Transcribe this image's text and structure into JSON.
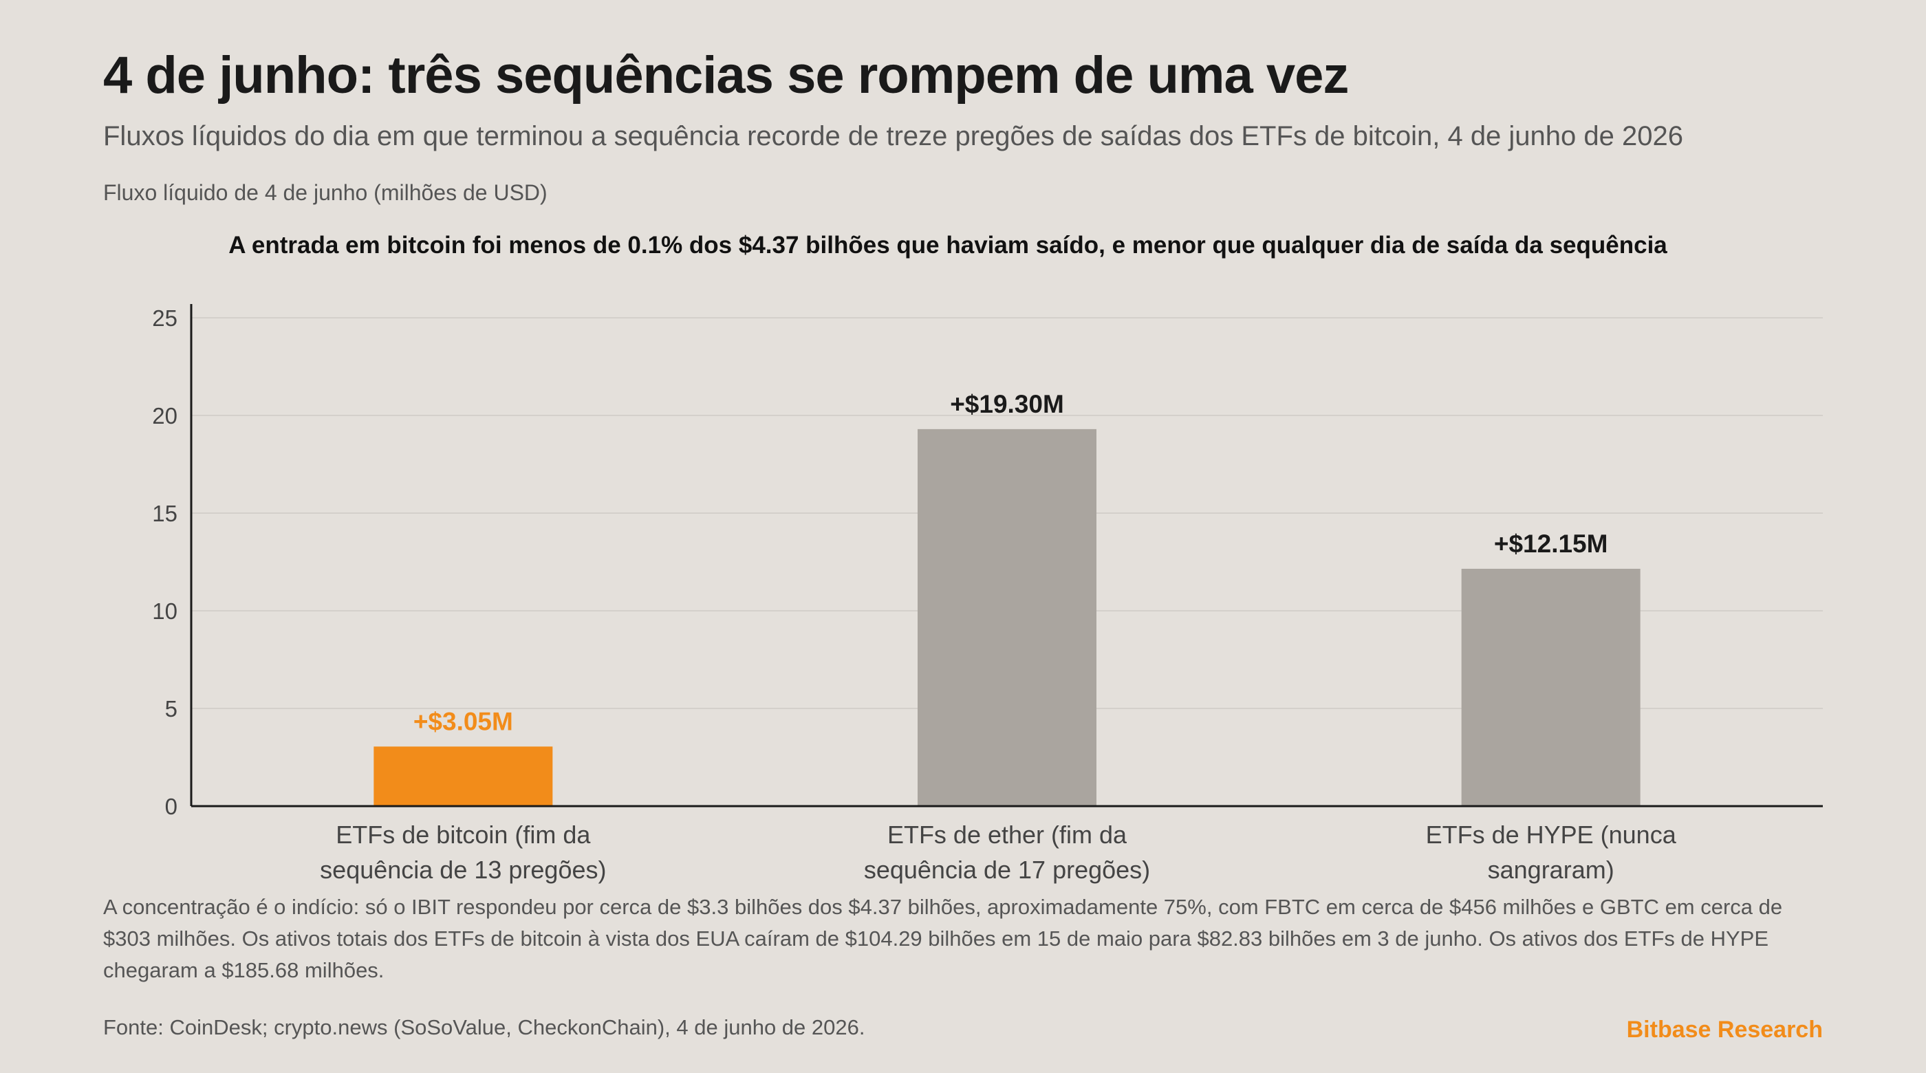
{
  "header": {
    "title": "4 de junho: três sequências se rompem de uma vez",
    "subtitle": "Fluxos líquidos do dia em que terminou a sequência recorde de treze pregões de saídas dos ETFs de bitcoin, 4 de junho de 2026",
    "units_label": "Fluxo líquido de 4 de junho (milhões de USD)",
    "annotation": "A entrada em bitcoin foi menos de 0.1% dos $4.37 bilhões que haviam saído, e menor que qualquer dia de saída da sequência"
  },
  "chart_data": {
    "type": "bar",
    "categories": [
      [
        "ETFs de bitcoin (fim da",
        "sequência de 13 pregões)"
      ],
      [
        "ETFs de ether (fim da",
        "sequência de 17 pregões)"
      ],
      [
        "ETFs de HYPE (nunca",
        "sangraram)"
      ]
    ],
    "values": [
      3.05,
      19.3,
      12.15
    ],
    "data_labels": [
      "+$3.05M",
      "+$19.30M",
      "+$12.15M"
    ],
    "colors": [
      "#f28c1a",
      "#aaa59f",
      "#aaa59f"
    ],
    "label_colors": [
      "#f28c1a",
      "#1a1a1a",
      "#1a1a1a"
    ],
    "ylim": [
      0,
      25
    ],
    "yticks": [
      0,
      5,
      10,
      15,
      20,
      25
    ],
    "grid": true,
    "gridline_color": "#d4d0cb",
    "axis_color": "#1a1a1a"
  },
  "footer": {
    "note": "A concentração é o indício: só o IBIT respondeu por cerca de $3.3 bilhões dos $4.37 bilhões, aproximadamente 75%, com FBTC em cerca de $456 milhões e GBTC em cerca de $303 milhões. Os ativos totais dos ETFs de bitcoin à vista dos EUA caíram de $104.29 bilhões em 15 de maio para $82.83 bilhões em 3 de junho. Os ativos dos ETFs de HYPE chegaram a $185.68 milhões.",
    "source": "Fonte: CoinDesk; crypto.news (SoSoValue, CheckonChain), 4 de junho de 2026.",
    "brand": "Bitbase Research",
    "brand_color": "#f28c1a"
  }
}
